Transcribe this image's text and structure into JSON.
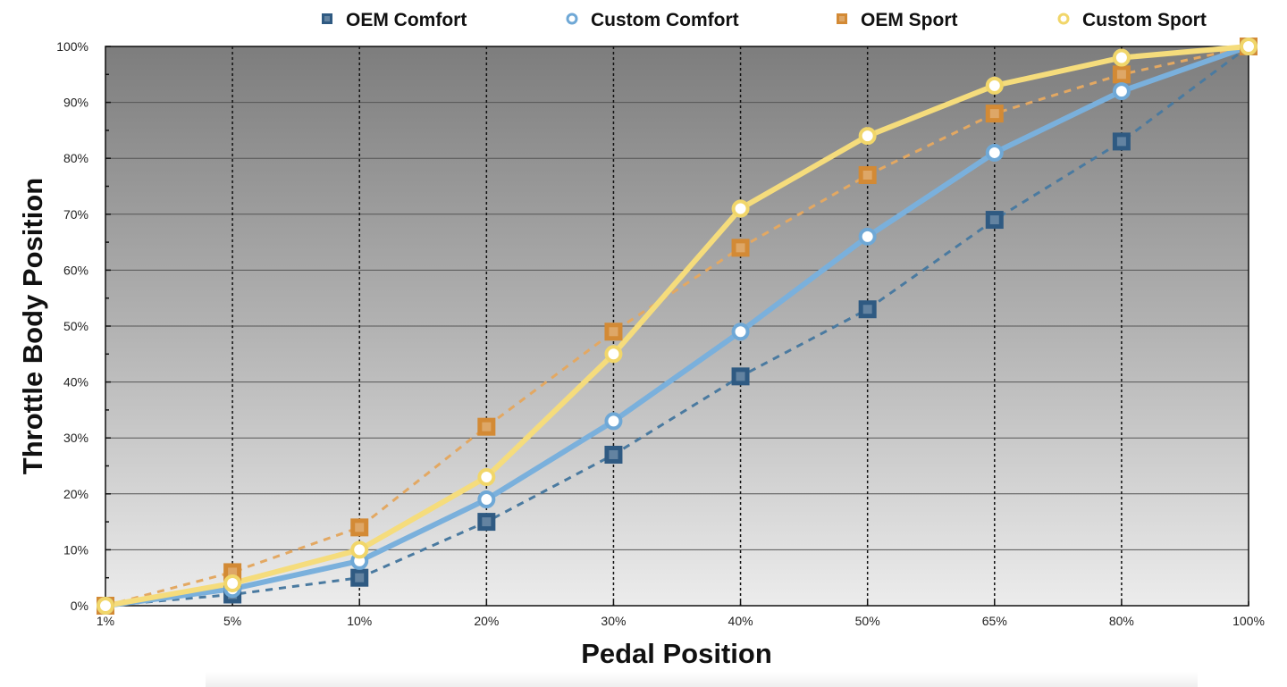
{
  "chart_data": {
    "type": "line",
    "title": "",
    "xlabel": "Pedal Position",
    "ylabel": "Throttle Body Position",
    "categories": [
      "1%",
      "5%",
      "10%",
      "20%",
      "30%",
      "40%",
      "50%",
      "65%",
      "80%",
      "100%"
    ],
    "yticks": [
      "0%",
      "10%",
      "20%",
      "30%",
      "40%",
      "50%",
      "60%",
      "70%",
      "80%",
      "90%",
      "100%"
    ],
    "ylim": [
      0,
      100
    ],
    "y_tick_step": 10,
    "y_minor_step": 5,
    "grid": true,
    "legend_position": "top",
    "series": [
      {
        "name": "OEM Comfort",
        "style": "dashed",
        "marker": "square",
        "color": "#2f5a82",
        "line_color": "#4a7aa0",
        "values": [
          0,
          2,
          5,
          15,
          27,
          41,
          53,
          69,
          83,
          100
        ]
      },
      {
        "name": "Custom Comfort",
        "style": "solid",
        "marker": "circle",
        "color": "#6fa8d6",
        "line_color": "#7ab0dc",
        "values": [
          0,
          3,
          8,
          19,
          33,
          49,
          66,
          81,
          92,
          100
        ]
      },
      {
        "name": "OEM Sport",
        "style": "dashed",
        "marker": "square",
        "color": "#d38a35",
        "line_color": "#e3a862",
        "values": [
          0,
          6,
          14,
          32,
          49,
          64,
          77,
          88,
          95,
          100
        ]
      },
      {
        "name": "Custom Sport",
        "style": "solid",
        "marker": "circle",
        "color": "#f1d66a",
        "line_color": "#f5dc7c",
        "values": [
          0,
          4,
          10,
          23,
          45,
          71,
          84,
          93,
          98,
          100
        ]
      }
    ]
  }
}
